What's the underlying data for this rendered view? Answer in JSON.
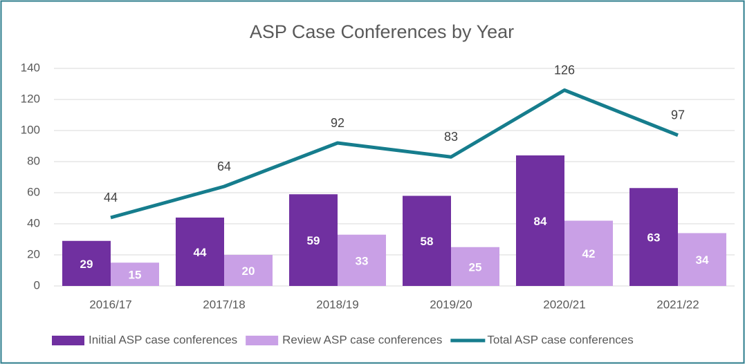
{
  "chart_data": {
    "type": "bar",
    "title": "ASP Case Conferences by Year",
    "categories": [
      "2016/17",
      "2017/18",
      "2018/19",
      "2019/20",
      "2020/21",
      "2021/22"
    ],
    "series": [
      {
        "name": "Initial ASP case conferences",
        "color": "#7030a0",
        "values": [
          29,
          44,
          59,
          58,
          84,
          63
        ]
      },
      {
        "name": "Review ASP case conferences",
        "color": "#c9a0e6",
        "values": [
          15,
          20,
          33,
          25,
          42,
          34
        ]
      },
      {
        "name": "Total ASP case conferences",
        "color": "#167d8d",
        "type": "line",
        "values": [
          44,
          64,
          92,
          83,
          126,
          97
        ]
      }
    ],
    "ylim": [
      0,
      140
    ],
    "yticks": [
      0,
      20,
      40,
      60,
      80,
      100,
      120,
      140
    ],
    "grid": true,
    "legend": "bottom"
  }
}
